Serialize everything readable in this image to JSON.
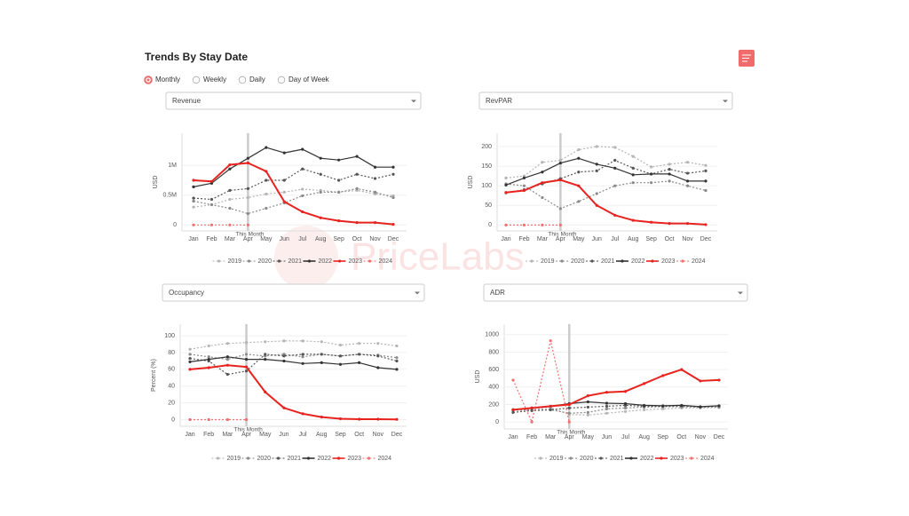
{
  "header": {
    "title": "Trends By Stay Date",
    "options": [
      "Monthly",
      "Weekly",
      "Daily",
      "Day of Week"
    ],
    "selected_option": 0
  },
  "watermark": "PriceLabs",
  "chart_data": [
    {
      "type": "line",
      "selector": "Revenue",
      "y_label": "USD",
      "categories": [
        "Jan",
        "Feb",
        "Mar",
        "Apr",
        "May",
        "Jun",
        "Jul",
        "Aug",
        "Sep",
        "Oct",
        "Nov",
        "Dec"
      ],
      "ylim": [
        -100000,
        1540000
      ],
      "yticks": [
        0,
        {
          "value": 500000,
          "label": "0.5M"
        },
        {
          "value": 1000000,
          "label": "1M"
        }
      ],
      "grid": true,
      "legend": "bottom",
      "annotation": {
        "text": "This Month",
        "x": "Apr"
      },
      "series": [
        {
          "name": "2019",
          "color": "#b5b5b5",
          "dash": "dot",
          "values": [
            300000,
            340000,
            430000,
            460000,
            520000,
            550000,
            600000,
            580000,
            550000,
            580000,
            520000,
            490000
          ]
        },
        {
          "name": "2020",
          "color": "#8a8a8a",
          "dash": "dot",
          "values": [
            400000,
            340000,
            280000,
            190000,
            280000,
            370000,
            490000,
            550000,
            550000,
            610000,
            550000,
            460000
          ]
        },
        {
          "name": "2021",
          "color": "#555555",
          "dash": "dot",
          "values": [
            450000,
            430000,
            580000,
            610000,
            750000,
            750000,
            940000,
            850000,
            750000,
            850000,
            780000,
            850000
          ]
        },
        {
          "name": "2022",
          "color": "#333333",
          "dash": "solid",
          "values": [
            640000,
            700000,
            940000,
            1120000,
            1300000,
            1210000,
            1270000,
            1120000,
            1090000,
            1150000,
            970000,
            970000
          ]
        },
        {
          "name": "2023",
          "color": "#e8231f",
          "dash": "solid",
          "values": [
            750000,
            730000,
            1010000,
            1040000,
            900000,
            390000,
            220000,
            120000,
            70000,
            40000,
            40000,
            10000
          ]
        },
        {
          "name": "2024",
          "color": "#f07070",
          "dash": "dot",
          "values": [
            0,
            0,
            0,
            0,
            null,
            null,
            null,
            null,
            null,
            null,
            null,
            null
          ]
        }
      ]
    },
    {
      "type": "line",
      "selector": "RevPAR",
      "y_label": "USD",
      "categories": [
        "Jan",
        "Feb",
        "Mar",
        "Apr",
        "May",
        "Jun",
        "Jul",
        "Aug",
        "Sep",
        "Oct",
        "Nov",
        "Dec"
      ],
      "ylim": [
        -15,
        234
      ],
      "yticks": [
        0,
        50,
        100,
        150,
        200
      ],
      "grid": true,
      "legend": "bottom",
      "annotation": {
        "text": "This Month",
        "x": "Apr"
      },
      "series": [
        {
          "name": "2019",
          "color": "#b5b5b5",
          "dash": "dot",
          "values": [
            120,
            125,
            160,
            165,
            192,
            200,
            198,
            175,
            148,
            155,
            160,
            152
          ]
        },
        {
          "name": "2020",
          "color": "#8a8a8a",
          "dash": "dot",
          "values": [
            105,
            100,
            70,
            42,
            60,
            80,
            100,
            108,
            108,
            112,
            100,
            88
          ]
        },
        {
          "name": "2021",
          "color": "#555555",
          "dash": "dot",
          "values": [
            82,
            90,
            105,
            118,
            135,
            138,
            165,
            145,
            130,
            142,
            132,
            138
          ]
        },
        {
          "name": "2022",
          "color": "#333333",
          "dash": "solid",
          "values": [
            102,
            120,
            135,
            158,
            170,
            155,
            145,
            128,
            130,
            130,
            112,
            112
          ]
        },
        {
          "name": "2023",
          "color": "#e8231f",
          "dash": "solid",
          "values": [
            83,
            88,
            108,
            115,
            100,
            50,
            25,
            12,
            7,
            4,
            4,
            1
          ]
        },
        {
          "name": "2024",
          "color": "#f07070",
          "dash": "dot",
          "values": [
            0,
            0,
            0,
            0,
            null,
            null,
            null,
            null,
            null,
            null,
            null,
            null
          ]
        }
      ]
    },
    {
      "type": "line",
      "selector": "Occupancy",
      "y_label": "Percent (%)",
      "categories": [
        "Jan",
        "Feb",
        "Mar",
        "Apr",
        "May",
        "Jun",
        "Jul",
        "Aug",
        "Sep",
        "Oct",
        "Nov",
        "Dec"
      ],
      "ylim": [
        -8,
        114
      ],
      "yticks": [
        0,
        20,
        40,
        60,
        80,
        100
      ],
      "grid": true,
      "legend": "bottom",
      "annotation": {
        "text": "This Month",
        "x": "Apr"
      },
      "series": [
        {
          "name": "2019",
          "color": "#b5b5b5",
          "dash": "dot",
          "values": [
            84,
            88,
            91,
            92,
            93,
            94,
            94,
            93,
            89,
            91,
            91,
            88
          ]
        },
        {
          "name": "2020",
          "color": "#8a8a8a",
          "dash": "dot",
          "values": [
            78,
            75,
            72,
            78,
            76,
            78,
            75,
            78,
            76,
            78,
            77,
            74
          ]
        },
        {
          "name": "2021",
          "color": "#555555",
          "dash": "dot",
          "values": [
            73,
            70,
            54,
            58,
            78,
            76,
            78,
            78,
            76,
            78,
            76,
            70
          ]
        },
        {
          "name": "2022",
          "color": "#333333",
          "dash": "solid",
          "values": [
            69,
            72,
            75,
            72,
            72,
            70,
            67,
            68,
            66,
            68,
            62,
            60
          ]
        },
        {
          "name": "2023",
          "color": "#e8231f",
          "dash": "solid",
          "values": [
            60,
            62,
            65,
            63,
            33,
            14,
            7,
            3,
            1,
            0.5,
            0.5,
            0.3
          ]
        },
        {
          "name": "2024",
          "color": "#f07070",
          "dash": "dot",
          "values": [
            0,
            0,
            0,
            0,
            null,
            null,
            null,
            null,
            null,
            null,
            null,
            null
          ]
        }
      ]
    },
    {
      "type": "line",
      "selector": "ADR",
      "y_label": "USD",
      "categories": [
        "Jan",
        "Feb",
        "Mar",
        "Apr",
        "May",
        "Jun",
        "Jul",
        "Aug",
        "Sep",
        "Oct",
        "Nov",
        "Dec"
      ],
      "ylim": [
        -80,
        1120
      ],
      "yticks": [
        0,
        200,
        400,
        600,
        800,
        1000
      ],
      "grid": true,
      "legend": "bottom",
      "annotation": {
        "text": "This Month",
        "x": "Apr"
      },
      "series": [
        {
          "name": "2019",
          "color": "#b5b5b5",
          "dash": "dot",
          "values": [
            140,
            150,
            165,
            85,
            80,
            100,
            120,
            140,
            150,
            160,
            160,
            165
          ]
        },
        {
          "name": "2020",
          "color": "#8a8a8a",
          "dash": "dot",
          "values": [
            135,
            140,
            140,
            100,
            110,
            150,
            160,
            170,
            175,
            175,
            170,
            170
          ]
        },
        {
          "name": "2021",
          "color": "#555555",
          "dash": "dot",
          "values": [
            110,
            130,
            140,
            160,
            170,
            180,
            190,
            180,
            180,
            185,
            170,
            185
          ]
        },
        {
          "name": "2022",
          "color": "#333333",
          "dash": "solid",
          "values": [
            140,
            160,
            180,
            210,
            230,
            215,
            210,
            190,
            185,
            190,
            175,
            185
          ]
        },
        {
          "name": "2023",
          "color": "#e8231f",
          "dash": "solid",
          "values": [
            140,
            160,
            180,
            200,
            300,
            340,
            350,
            440,
            530,
            600,
            470,
            480
          ]
        },
        {
          "name": "2024",
          "color": "#f07070",
          "dash": "dot",
          "values": [
            480,
            0,
            930,
            0,
            null,
            null,
            null,
            null,
            null,
            null,
            null,
            null
          ]
        }
      ]
    }
  ]
}
